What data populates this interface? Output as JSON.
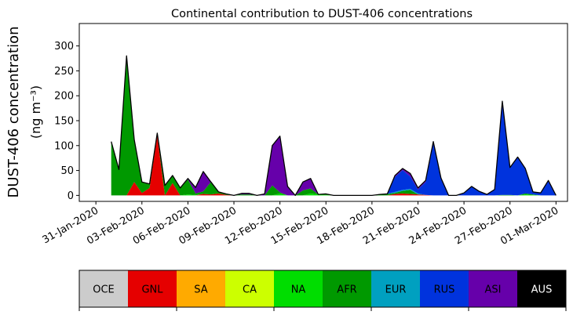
{
  "chart_data": {
    "type": "area",
    "stacked": true,
    "title": "Continental contribution to DUST-406 concentrations",
    "xlabel": "",
    "ylabel": "DUST-406 concentration",
    "ylabel_units": "(ng m⁻³)",
    "ylim": [
      -12,
      345
    ],
    "yticks": [
      0,
      50,
      100,
      150,
      200,
      250,
      300
    ],
    "xlim": [
      "2020-01-29T22:00",
      "2020-03-01T18:00"
    ],
    "xtick_labels": [
      "31-Jan-2020",
      "03-Feb-2020",
      "06-Feb-2020",
      "09-Feb-2020",
      "12-Feb-2020",
      "15-Feb-2020",
      "18-Feb-2020",
      "21-Feb-2020",
      "24-Feb-2020",
      "27-Feb-2020",
      "01-Mar-2020"
    ],
    "xtick_dates": [
      "2020-01-31",
      "2020-02-03",
      "2020-02-06",
      "2020-02-09",
      "2020-02-12",
      "2020-02-15",
      "2020-02-18",
      "2020-02-21",
      "2020-02-24",
      "2020-02-27",
      "2020-03-01"
    ],
    "grid": false,
    "x": [
      "2020-02-01T00:00",
      "2020-02-01T12:00",
      "2020-02-02T00:00",
      "2020-02-02T12:00",
      "2020-02-03T00:00",
      "2020-02-03T12:00",
      "2020-02-04T00:00",
      "2020-02-04T12:00",
      "2020-02-05T00:00",
      "2020-02-05T12:00",
      "2020-02-06T00:00",
      "2020-02-06T12:00",
      "2020-02-07T00:00",
      "2020-02-07T12:00",
      "2020-02-08T00:00",
      "2020-02-08T12:00",
      "2020-02-09T00:00",
      "2020-02-09T12:00",
      "2020-02-10T00:00",
      "2020-02-10T12:00",
      "2020-02-11T00:00",
      "2020-02-11T12:00",
      "2020-02-12T00:00",
      "2020-02-12T12:00",
      "2020-02-13T00:00",
      "2020-02-13T12:00",
      "2020-02-14T00:00",
      "2020-02-14T12:00",
      "2020-02-15T00:00",
      "2020-02-15T12:00",
      "2020-02-16T00:00",
      "2020-02-16T12:00",
      "2020-02-17T00:00",
      "2020-02-17T12:00",
      "2020-02-18T00:00",
      "2020-02-18T12:00",
      "2020-02-19T00:00",
      "2020-02-19T12:00",
      "2020-02-20T00:00",
      "2020-02-20T12:00",
      "2020-02-21T00:00",
      "2020-02-21T12:00",
      "2020-02-22T00:00",
      "2020-02-22T12:00",
      "2020-02-23T00:00",
      "2020-02-23T12:00",
      "2020-02-24T00:00",
      "2020-02-24T12:00",
      "2020-02-25T00:00",
      "2020-02-25T12:00",
      "2020-02-26T00:00",
      "2020-02-26T12:00",
      "2020-02-27T00:00",
      "2020-02-27T12:00",
      "2020-02-28T00:00",
      "2020-02-28T12:00",
      "2020-02-29T00:00",
      "2020-02-29T12:00",
      "2020-03-01T00:00"
    ],
    "series": [
      {
        "name": "OCE",
        "color": "#cccccc",
        "values": [
          0,
          0,
          0,
          0,
          0,
          0,
          0,
          0,
          0,
          0,
          0,
          0,
          0,
          0,
          0,
          0,
          0,
          0,
          0,
          0,
          0,
          0,
          0,
          0,
          0,
          0,
          0,
          0,
          0,
          0,
          0,
          0,
          0,
          0,
          0,
          0,
          0,
          0,
          0,
          0,
          0,
          0,
          0,
          0,
          0,
          0,
          0,
          0,
          0,
          0,
          0,
          0,
          0,
          0,
          0,
          0,
          0,
          0,
          0
        ]
      },
      {
        "name": "GNL",
        "color": "#e50000",
        "values": [
          0,
          0,
          0,
          27,
          5,
          15,
          120,
          0,
          25,
          0,
          0,
          0,
          3,
          2,
          4,
          1,
          0,
          0,
          0,
          0,
          0,
          0,
          0,
          0,
          0,
          0,
          0,
          0,
          0,
          0,
          0,
          0,
          0,
          0,
          0,
          0,
          0,
          3,
          4,
          3,
          2,
          1,
          0,
          0,
          0,
          0,
          0,
          0,
          0,
          0,
          0,
          0,
          0,
          0,
          0,
          0,
          0,
          0,
          0
        ]
      },
      {
        "name": "SA",
        "color": "#ffaa00",
        "values": [
          0,
          0,
          0,
          0,
          0,
          0,
          0,
          0,
          0,
          0,
          0,
          0,
          0,
          0,
          0,
          0,
          0,
          0,
          0,
          0,
          0,
          0,
          0,
          0,
          0,
          0,
          0,
          0,
          0,
          0,
          0,
          0,
          0,
          0,
          0,
          0,
          0,
          0,
          0,
          0,
          0,
          0,
          0,
          0,
          0,
          0,
          0,
          0,
          0,
          0,
          0,
          0,
          0,
          0,
          0,
          0,
          0,
          0,
          0
        ]
      },
      {
        "name": "CA",
        "color": "#ccff00",
        "values": [
          0,
          0,
          0,
          0,
          0,
          0,
          0,
          0,
          0,
          0,
          0,
          0,
          0,
          0,
          0,
          0,
          0,
          0,
          0,
          0,
          0,
          0,
          0,
          0,
          0,
          0,
          0,
          0,
          0,
          0,
          0,
          0,
          0,
          0,
          0,
          0,
          0,
          0,
          0,
          0,
          0,
          0,
          0,
          0,
          0,
          0,
          0,
          0,
          0,
          0,
          0,
          0,
          0,
          0,
          0,
          0,
          0,
          0,
          0
        ]
      },
      {
        "name": "NA",
        "color": "#00dd00",
        "values": [
          0,
          0,
          0,
          0,
          0,
          0,
          0,
          0,
          0,
          0,
          2,
          1,
          0,
          0,
          0,
          0,
          0,
          0,
          0,
          0,
          0,
          0,
          4,
          0,
          0,
          0,
          4,
          2,
          1,
          0,
          0,
          0,
          0,
          0,
          0,
          0,
          0,
          0,
          0,
          0,
          0,
          0,
          0,
          0,
          0,
          0,
          0,
          0,
          0,
          0,
          0,
          0,
          0,
          0,
          2,
          1,
          0,
          0,
          0
        ]
      },
      {
        "name": "AFR",
        "color": "#009900",
        "values": [
          108,
          52,
          280,
          85,
          22,
          8,
          5,
          20,
          15,
          15,
          30,
          3,
          5,
          25,
          3,
          2,
          0,
          2,
          2,
          0,
          0,
          20,
          2,
          0,
          0,
          10,
          10,
          0,
          2,
          0,
          0,
          0,
          0,
          0,
          0,
          2,
          3,
          2,
          5,
          8,
          0,
          0,
          0,
          0,
          0,
          0,
          0,
          0,
          0,
          0,
          0,
          1,
          1,
          0,
          2,
          1,
          0,
          0,
          0
        ]
      },
      {
        "name": "EUR",
        "color": "#00a0c0",
        "values": [
          0,
          0,
          0,
          0,
          0,
          0,
          0,
          0,
          0,
          0,
          0,
          0,
          0,
          0,
          0,
          0,
          0,
          0,
          0,
          0,
          0,
          0,
          0,
          0,
          0,
          0,
          0,
          0,
          0,
          0,
          0,
          0,
          0,
          0,
          0,
          0,
          0,
          2,
          2,
          2,
          2,
          0,
          0,
          0,
          0,
          0,
          0,
          0,
          0,
          0,
          0,
          0,
          0,
          0,
          0,
          0,
          0,
          0,
          0
        ]
      },
      {
        "name": "RUS",
        "color": "#0033dd",
        "values": [
          0,
          0,
          0,
          0,
          0,
          0,
          0,
          0,
          0,
          0,
          0,
          0,
          0,
          0,
          0,
          0,
          0,
          0,
          0,
          0,
          0,
          0,
          0,
          0,
          0,
          0,
          0,
          0,
          0,
          0,
          0,
          0,
          0,
          0,
          0,
          0,
          0,
          30,
          40,
          25,
          8,
          26,
          105,
          33,
          0,
          0,
          5,
          18,
          8,
          2,
          12,
          188,
          55,
          77,
          50,
          5,
          5,
          30,
          0
        ]
      },
      {
        "name": "ASI",
        "color": "#6600aa",
        "values": [
          0,
          0,
          0,
          0,
          0,
          0,
          0,
          0,
          0,
          0,
          2,
          12,
          40,
          0,
          0,
          0,
          0,
          2,
          2,
          0,
          3,
          80,
          113,
          18,
          0,
          17,
          20,
          0,
          0,
          0,
          0,
          0,
          0,
          0,
          0,
          0,
          0,
          3,
          3,
          6,
          3,
          3,
          3,
          2,
          0,
          0,
          0,
          0,
          0,
          0,
          0,
          0,
          0,
          0,
          0,
          0,
          0,
          0,
          0
        ]
      },
      {
        "name": "AUS",
        "color": "#000000",
        "values": [
          0,
          0,
          0,
          0,
          0,
          0,
          0,
          0,
          0,
          0,
          0,
          0,
          0,
          0,
          0,
          0,
          0,
          0,
          0,
          0,
          0,
          0,
          0,
          0,
          0,
          0,
          0,
          0,
          0,
          0,
          0,
          0,
          0,
          0,
          0,
          0,
          0,
          0,
          0,
          0,
          0,
          0,
          0,
          0,
          0,
          0,
          0,
          0,
          0,
          0,
          0,
          0,
          0,
          0,
          0,
          0,
          0,
          0,
          0
        ]
      }
    ],
    "legend": {
      "placement": "bottom colorbar",
      "items": [
        {
          "label": "OCE",
          "color": "#cccccc",
          "text_color": "#000000"
        },
        {
          "label": "GNL",
          "color": "#e50000",
          "text_color": "#000000"
        },
        {
          "label": "SA",
          "color": "#ffaa00",
          "text_color": "#000000"
        },
        {
          "label": "CA",
          "color": "#ccff00",
          "text_color": "#000000"
        },
        {
          "label": "NA",
          "color": "#00dd00",
          "text_color": "#000000"
        },
        {
          "label": "AFR",
          "color": "#009900",
          "text_color": "#000000"
        },
        {
          "label": "EUR",
          "color": "#00a0c0",
          "text_color": "#000000"
        },
        {
          "label": "RUS",
          "color": "#0033dd",
          "text_color": "#000000"
        },
        {
          "label": "ASI",
          "color": "#6600aa",
          "text_color": "#000000"
        },
        {
          "label": "AUS",
          "color": "#000000",
          "text_color": "#ffffff"
        }
      ]
    }
  }
}
